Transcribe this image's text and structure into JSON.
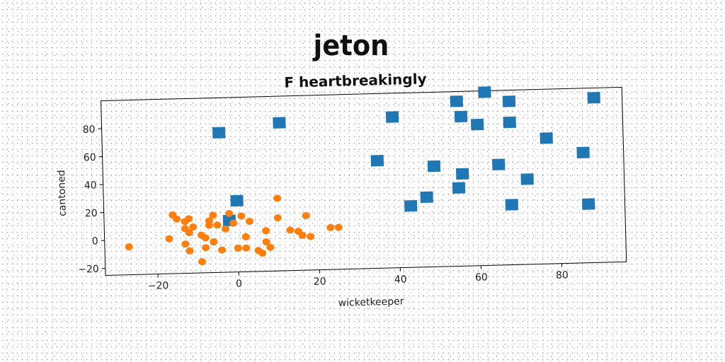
{
  "chart_data": {
    "type": "scatter",
    "title": "jeton",
    "subtitle": "F heartbreakingly",
    "xlabel": "wicketkeeper",
    "ylabel": "cantoned",
    "xlim": [
      -33,
      96
    ],
    "ylim": [
      -25,
      100
    ],
    "x_ticks": [
      -20,
      0,
      20,
      40,
      60,
      80
    ],
    "y_ticks": [
      -20,
      0,
      20,
      40,
      60,
      80
    ],
    "grid": false,
    "series": [
      {
        "marker": "square",
        "color": "#1f77b4",
        "points": [
          [
            -4,
            75
          ],
          [
            11,
            81
          ],
          [
            0,
            26
          ],
          [
            -2,
            12
          ],
          [
            39,
            83
          ],
          [
            35,
            52
          ],
          [
            43,
            19
          ],
          [
            47,
            25
          ],
          [
            49,
            47
          ],
          [
            55,
            31
          ],
          [
            56,
            41
          ],
          [
            56,
            82
          ],
          [
            55,
            93
          ],
          [
            60,
            76
          ],
          [
            62,
            99
          ],
          [
            68,
            92
          ],
          [
            68,
            77
          ],
          [
            65,
            47
          ],
          [
            68,
            18
          ],
          [
            72,
            36
          ],
          [
            77,
            65
          ],
          [
            86,
            54
          ],
          [
            87,
            17
          ],
          [
            89,
            93
          ]
        ]
      },
      {
        "marker": "circle",
        "color": "#ff7f0e",
        "points": [
          [
            -27,
            -5
          ],
          [
            -17,
            0
          ],
          [
            -16,
            17
          ],
          [
            -15,
            14
          ],
          [
            -13,
            12
          ],
          [
            -12,
            14
          ],
          [
            -13,
            7
          ],
          [
            -12,
            4
          ],
          [
            -11,
            8
          ],
          [
            -13,
            -4
          ],
          [
            -12,
            -9
          ],
          [
            -9,
            -17
          ],
          [
            -9,
            2
          ],
          [
            -8,
            0
          ],
          [
            -8,
            -7
          ],
          [
            -7,
            12
          ],
          [
            -6,
            16
          ],
          [
            -5,
            9
          ],
          [
            -7,
            9
          ],
          [
            -6,
            -3
          ],
          [
            -4,
            -9
          ],
          [
            -3,
            6
          ],
          [
            -2,
            17
          ],
          [
            -1,
            10
          ],
          [
            0,
            -8
          ],
          [
            1,
            15
          ],
          [
            2,
            0
          ],
          [
            2,
            -8
          ],
          [
            3,
            11
          ],
          [
            5,
            -10
          ],
          [
            6,
            -12
          ],
          [
            7,
            -4
          ],
          [
            8,
            -8
          ],
          [
            7,
            4
          ],
          [
            10,
            27
          ],
          [
            10,
            13
          ],
          [
            13,
            4
          ],
          [
            15,
            3
          ],
          [
            17,
            14
          ],
          [
            16,
            0
          ],
          [
            18,
            -1
          ],
          [
            23,
            5
          ],
          [
            25,
            5
          ]
        ]
      }
    ]
  }
}
